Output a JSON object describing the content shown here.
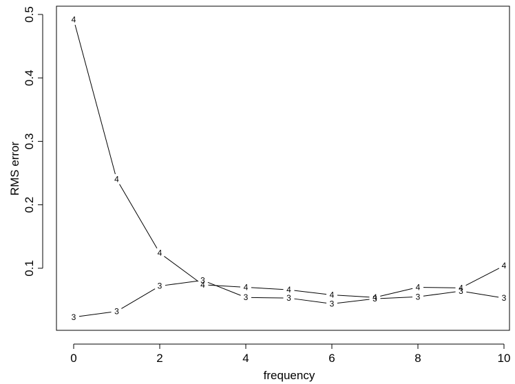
{
  "chart_data": {
    "type": "line",
    "title": "",
    "xlabel": "frequency",
    "ylabel": "RMS error",
    "xlim": [
      0,
      10
    ],
    "ylim": [
      0,
      0.5
    ],
    "x_ticks": [
      "0",
      "2",
      "4",
      "6",
      "8",
      "10"
    ],
    "y_ticks": [
      "0.1",
      "0.2",
      "0.3",
      "0.4",
      "0.5"
    ],
    "grid": false,
    "legend": "none",
    "series": [
      {
        "marker": "4",
        "x": [
          0,
          1,
          2,
          3,
          4,
          5,
          6,
          7,
          8,
          9,
          10
        ],
        "values": [
          0.492,
          0.24,
          0.124,
          0.074,
          0.07,
          0.066,
          0.058,
          0.054,
          0.07,
          0.069,
          0.104
        ]
      },
      {
        "marker": "3",
        "x": [
          0,
          1,
          2,
          3,
          4,
          5,
          6,
          7,
          8,
          9,
          10
        ],
        "values": [
          0.023,
          0.032,
          0.072,
          0.081,
          0.054,
          0.053,
          0.044,
          0.052,
          0.055,
          0.064,
          0.053
        ]
      }
    ]
  }
}
